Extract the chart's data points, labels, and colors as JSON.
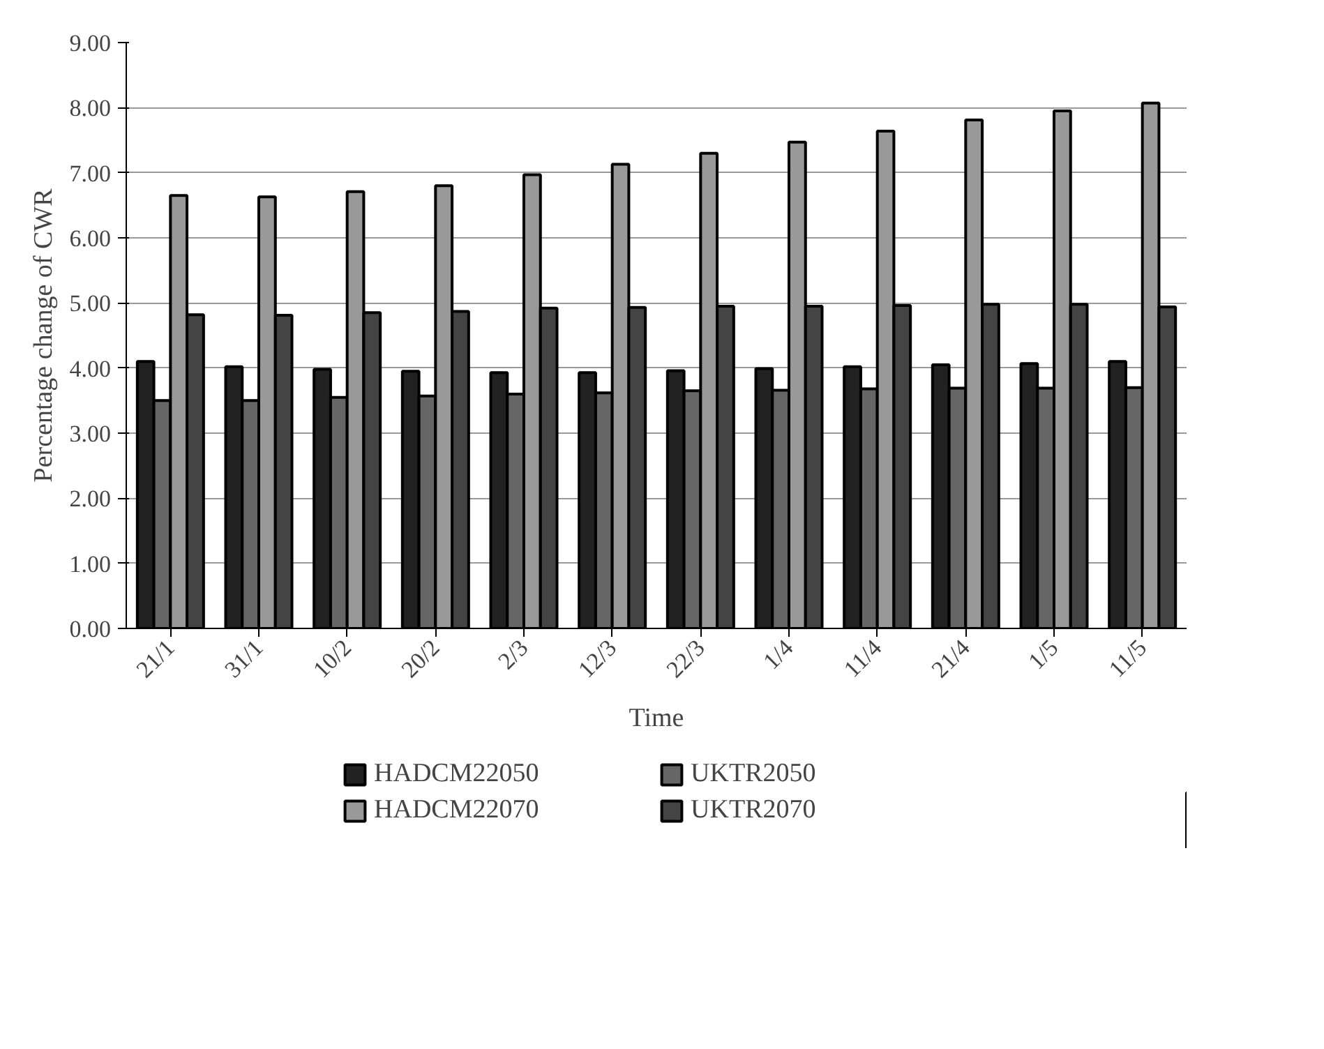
{
  "chart_data": {
    "type": "bar",
    "xlabel": "Time",
    "ylabel": "Percentage change of CWR",
    "categories": [
      "21/1",
      "31/1",
      "10/2",
      "20/2",
      "2/3",
      "12/3",
      "22/3",
      "1/4",
      "11/4",
      "21/4",
      "1/5",
      "11/5"
    ],
    "series": [
      {
        "name": "HADCM22050",
        "color": "#222222",
        "values": [
          4.1,
          4.02,
          3.98,
          3.95,
          3.93,
          3.93,
          3.96,
          3.99,
          4.02,
          4.05,
          4.07,
          4.1
        ]
      },
      {
        "name": "UKTR2050",
        "color": "#666666",
        "values": [
          3.5,
          3.5,
          3.55,
          3.57,
          3.6,
          3.62,
          3.65,
          3.66,
          3.68,
          3.69,
          3.69,
          3.7
        ]
      },
      {
        "name": "HADCM22070",
        "color": "#999999",
        "values": [
          6.65,
          6.63,
          6.71,
          6.8,
          6.97,
          7.13,
          7.3,
          7.47,
          7.64,
          7.81,
          7.95,
          8.07
        ]
      },
      {
        "name": "UKTR2070",
        "color": "#444444",
        "values": [
          4.82,
          4.81,
          4.85,
          4.87,
          4.92,
          4.93,
          4.95,
          4.95,
          4.96,
          4.98,
          4.98,
          4.94
        ]
      }
    ],
    "ylim": [
      0,
      9
    ],
    "yticks": [
      {
        "value": 0,
        "label": "0.00"
      },
      {
        "value": 1,
        "label": "1.00"
      },
      {
        "value": 2,
        "label": "2.00"
      },
      {
        "value": 3,
        "label": "3.00"
      },
      {
        "value": 4,
        "label": "4.00"
      },
      {
        "value": 5,
        "label": "5.00"
      },
      {
        "value": 6,
        "label": "6.00"
      },
      {
        "value": 7,
        "label": "7.00"
      },
      {
        "value": 8,
        "label": "8.00"
      },
      {
        "value": 9,
        "label": "9.00"
      }
    ],
    "grid": "y",
    "legend": "bottom"
  }
}
